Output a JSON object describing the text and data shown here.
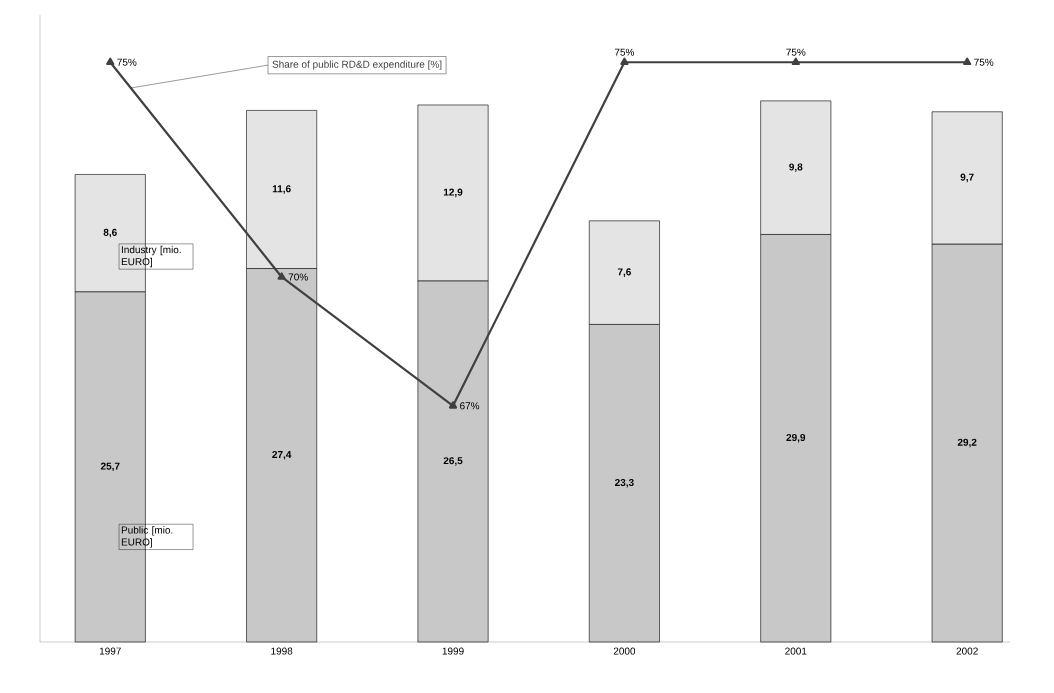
{
  "chart_data": {
    "type": "bar",
    "stacked": true,
    "categories": [
      "1997",
      "1998",
      "1999",
      "2000",
      "2001",
      "2002"
    ],
    "series": [
      {
        "name": "Public [mio. EURO]",
        "color": "#c8c8c8",
        "values": [
          25.7,
          27.4,
          26.5,
          23.3,
          29.9,
          29.2
        ],
        "value_labels": [
          "25,7",
          "27,4",
          "26,5",
          "23,3",
          "29,9",
          "29,2"
        ]
      },
      {
        "name": "Industry [mio. EURO]",
        "color": "#e4e4e4",
        "values": [
          8.6,
          11.6,
          12.9,
          7.6,
          9.8,
          9.7
        ],
        "value_labels": [
          "8,6",
          "11,6",
          "12,9",
          "7,6",
          "9,8",
          "9,7"
        ]
      },
      {
        "name": "Share of public RD&D expenditure [%]",
        "type": "line",
        "axis": "y2",
        "color": "#404040",
        "marker": "triangle",
        "values": [
          75,
          70,
          67,
          75,
          75,
          75
        ],
        "value_labels": [
          "75%",
          "70%",
          "67%",
          "75%",
          "75%",
          "75%"
        ]
      }
    ],
    "ylim": [
      0,
      46
    ],
    "y2lim": [
      61.5,
      76.1
    ],
    "tick_labels": "x",
    "grid": false
  }
}
